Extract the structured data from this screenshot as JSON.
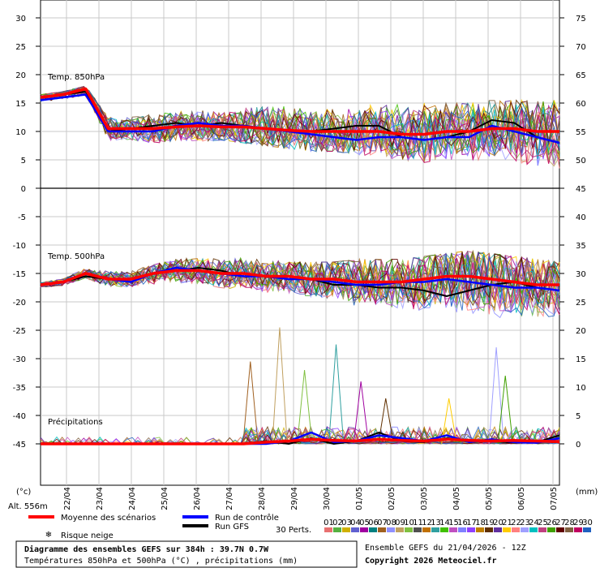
{
  "chart_data": {
    "type": "line",
    "panels": [
      {
        "name": "Temp. 850hPa",
        "left_axis_ticks": [
          30,
          25,
          20,
          15,
          10,
          5,
          0
        ],
        "right_axis_ticks": [
          75,
          70,
          65,
          60,
          55,
          50,
          45
        ],
        "ylim": [
          0,
          33
        ],
        "mean": [
          16,
          16.5,
          17.5,
          10.5,
          10.5,
          10.5,
          10.8,
          11,
          10.8,
          10.8,
          10.5,
          10.2,
          10,
          10,
          10,
          10,
          9.5,
          9.5,
          10,
          10,
          10.5,
          10.5,
          10,
          10
        ],
        "control": [
          15.5,
          16,
          16.5,
          10,
          10,
          10,
          11,
          11.5,
          11,
          11,
          10.5,
          10,
          9.5,
          9,
          8.5,
          9,
          9,
          8.5,
          9,
          9,
          11,
          10,
          9,
          8
        ],
        "gfs": [
          16,
          16.5,
          17,
          10,
          10.5,
          11,
          11.5,
          11,
          11.5,
          11,
          10.5,
          10,
          10,
          10.5,
          11,
          11,
          9,
          8.5,
          9,
          10,
          12,
          11.5,
          9,
          8
        ],
        "spread_min": [
          15,
          15,
          15.5,
          8,
          8,
          7.5,
          8,
          8,
          8.5,
          8,
          7.5,
          7,
          6.5,
          6.5,
          6,
          5.5,
          5,
          4.5,
          5,
          5,
          5,
          4.5,
          4,
          3.5
        ],
        "spread_max": [
          16.5,
          17,
          18,
          12.5,
          12.5,
          13,
          13.5,
          14,
          14.5,
          15.5,
          15.5,
          15.5,
          15,
          14.5,
          15,
          15,
          15,
          15,
          15,
          15,
          15.5,
          15.5,
          15.5,
          15.5
        ]
      },
      {
        "name": "Temp. 500hPa",
        "left_axis_ticks": [
          -5,
          -10,
          -15,
          -20,
          -25
        ],
        "right_axis_ticks": [
          40,
          35,
          30,
          25,
          20
        ],
        "mean": [
          -17,
          -16.5,
          -15,
          -16,
          -16,
          -15,
          -14.5,
          -14.5,
          -15,
          -15,
          -15.5,
          -15.5,
          -16,
          -16,
          -16.5,
          -16.5,
          -16.5,
          -16,
          -15.5,
          -15.5,
          -16,
          -16.5,
          -17,
          -17
        ],
        "control": [
          -17,
          -16.5,
          -15,
          -16,
          -16.5,
          -15,
          -14,
          -14.5,
          -15,
          -15.5,
          -15.5,
          -16,
          -16,
          -16.5,
          -17,
          -17,
          -16.5,
          -16.5,
          -16,
          -16.5,
          -17,
          -17.5,
          -17.5,
          -18
        ],
        "gfs": [
          -17,
          -16.5,
          -15.5,
          -16,
          -16,
          -15,
          -14.5,
          -14,
          -14.5,
          -15.5,
          -15.5,
          -16,
          -16,
          -17,
          -17,
          -17.5,
          -17.5,
          -18,
          -19,
          -18,
          -17,
          -16.5,
          -17.5,
          -18
        ],
        "spread_min": [
          -17.5,
          -17.5,
          -16,
          -17.5,
          -17.5,
          -17.5,
          -17,
          -17,
          -17.5,
          -18,
          -18.5,
          -19,
          -20,
          -20.5,
          -21,
          -21.5,
          -22,
          -22.5,
          -23,
          -23,
          -23.5,
          -24,
          -24,
          -24
        ],
        "spread_max": [
          -16.5,
          -16,
          -14,
          -14.5,
          -14.5,
          -13.5,
          -12.5,
          -12,
          -12,
          -12,
          -12.5,
          -13,
          -13,
          -13,
          -12.5,
          -12.5,
          -12.5,
          -12,
          -11.5,
          -11,
          -11.5,
          -12,
          -12.5,
          -13
        ]
      },
      {
        "name": "Précipitations",
        "left_axis_ticks": [
          -30,
          -35,
          -40,
          -45
        ],
        "right_axis_ticks": [
          15,
          10,
          5,
          0
        ],
        "mean": [
          0,
          0,
          0,
          0,
          0,
          0,
          0,
          0,
          0,
          0,
          0.3,
          0.5,
          0.8,
          0.6,
          0.5,
          0.8,
          0.6,
          0.5,
          0.8,
          0.6,
          0.5,
          0.6,
          0.5,
          0.4
        ],
        "control": [
          0,
          0,
          0,
          0,
          0,
          0,
          0,
          0,
          0,
          0,
          0,
          0.5,
          2,
          0.3,
          0.5,
          1.5,
          1,
          0.5,
          1.5,
          0.3,
          0.8,
          0.3,
          0.2,
          1
        ],
        "gfs": [
          0,
          0,
          0,
          0,
          0,
          0,
          0,
          0,
          0,
          0,
          0.5,
          0,
          1,
          0,
          0.5,
          2,
          0.5,
          0.3,
          1,
          0.5,
          0.5,
          0.2,
          0.3,
          1.5
        ],
        "peaks": [
          {
            "member": 6,
            "x": 9.3,
            "value": 14.5
          },
          {
            "member": 8,
            "x": 10.6,
            "value": 20.5
          },
          {
            "member": 9,
            "x": 11.7,
            "value": 13
          },
          {
            "member": 12,
            "x": 13.1,
            "value": 17.5
          },
          {
            "member": 4,
            "x": 14.2,
            "value": 11
          },
          {
            "member": 18,
            "x": 15.3,
            "value": 8
          },
          {
            "member": 20,
            "x": 18.1,
            "value": 8
          },
          {
            "member": 22,
            "x": 20.2,
            "value": 17
          },
          {
            "member": 25,
            "x": 20.6,
            "value": 12
          }
        ]
      }
    ],
    "x_ticks": [
      "22/04",
      "23/04",
      "24/04",
      "25/04",
      "26/04",
      "27/04",
      "28/04",
      "29/04",
      "30/04",
      "01/05",
      "02/05",
      "03/05",
      "04/05",
      "05/05",
      "06/05",
      "07/05"
    ],
    "left_unit": "(°c)",
    "right_unit": "(mm)",
    "altitude": "Alt. 556m",
    "legend": {
      "mean": {
        "label": "Moyenne des scénarios",
        "color": "#ff0000"
      },
      "control": {
        "label": "Run de contrôle",
        "color": "#0000ff"
      },
      "gfs": {
        "label": "Run GFS",
        "color": "#000000"
      },
      "snow": {
        "label": "Risque neige",
        "color": "#3399ff"
      },
      "perts": {
        "label": "30 Perts."
      }
    },
    "member_labels": [
      "01",
      "02",
      "03",
      "04",
      "05",
      "06",
      "07",
      "08",
      "09",
      "10",
      "11",
      "12",
      "13",
      "14",
      "15",
      "16",
      "17",
      "18",
      "19",
      "20",
      "21",
      "22",
      "23",
      "24",
      "25",
      "26",
      "27",
      "28",
      "29",
      "30"
    ],
    "member_colors": [
      "#e87070",
      "#55b040",
      "#d0b000",
      "#6060d0",
      "#a000a0",
      "#008080",
      "#a06020",
      "#9090ff",
      "#c0a060",
      "#80c040",
      "#505050",
      "#c07000",
      "#30a0a0",
      "#40c000",
      "#c050c0",
      "#8080ff",
      "#9040ff",
      "#c08000",
      "#603000",
      "#6030a0",
      "#ffcc00",
      "#ff8080",
      "#a0a0ff",
      "#00c0c0",
      "#c04080",
      "#40a000",
      "#600000",
      "#806040",
      "#c00060",
      "#2060c0"
    ]
  },
  "footer": {
    "title": "Diagramme des ensembles GEFS sur 384h : 39.7N 0.7W",
    "subtitle": "Températures 850hPa et 500hPa (°C) , précipitations (mm)",
    "run": "Ensemble GEFS du 21/04/2026 - 12Z",
    "copyright": "Copyright 2026 Meteociel.fr"
  }
}
